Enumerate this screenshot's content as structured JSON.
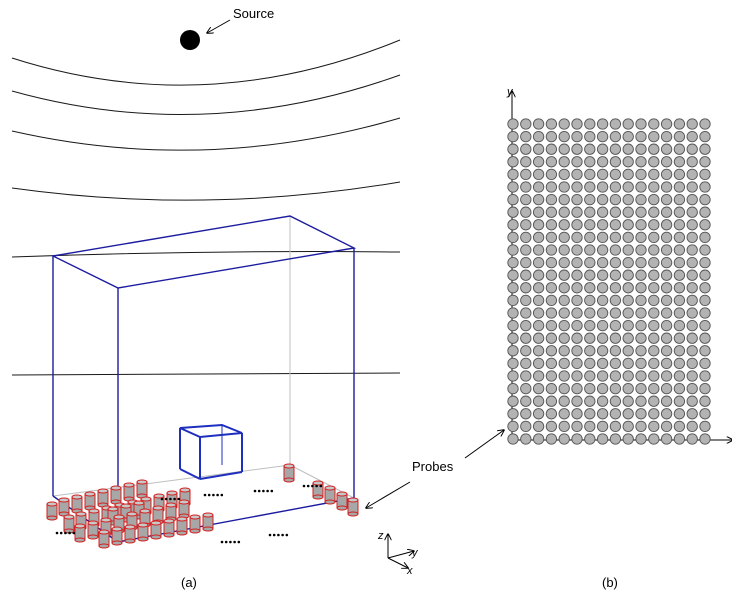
{
  "labels": {
    "source": "Source",
    "probes": "Probes",
    "panel_a": "(a)",
    "panel_b": "(b)",
    "axis_z": "z",
    "axis_y": "y",
    "axis_x": "x",
    "grid_axis_y": "y"
  },
  "colors": {
    "box_outer": "#1c1ca0",
    "box_inner": "#1e2fbf",
    "probe_red": "#d32020",
    "probe_fill": "#a7a7a7",
    "grid_dot": "#b3b3b3",
    "wave_line": "#1a1a1a",
    "hidden_edge": "#bfbfbf"
  },
  "grid": {
    "columns": 16,
    "rows": 26
  }
}
